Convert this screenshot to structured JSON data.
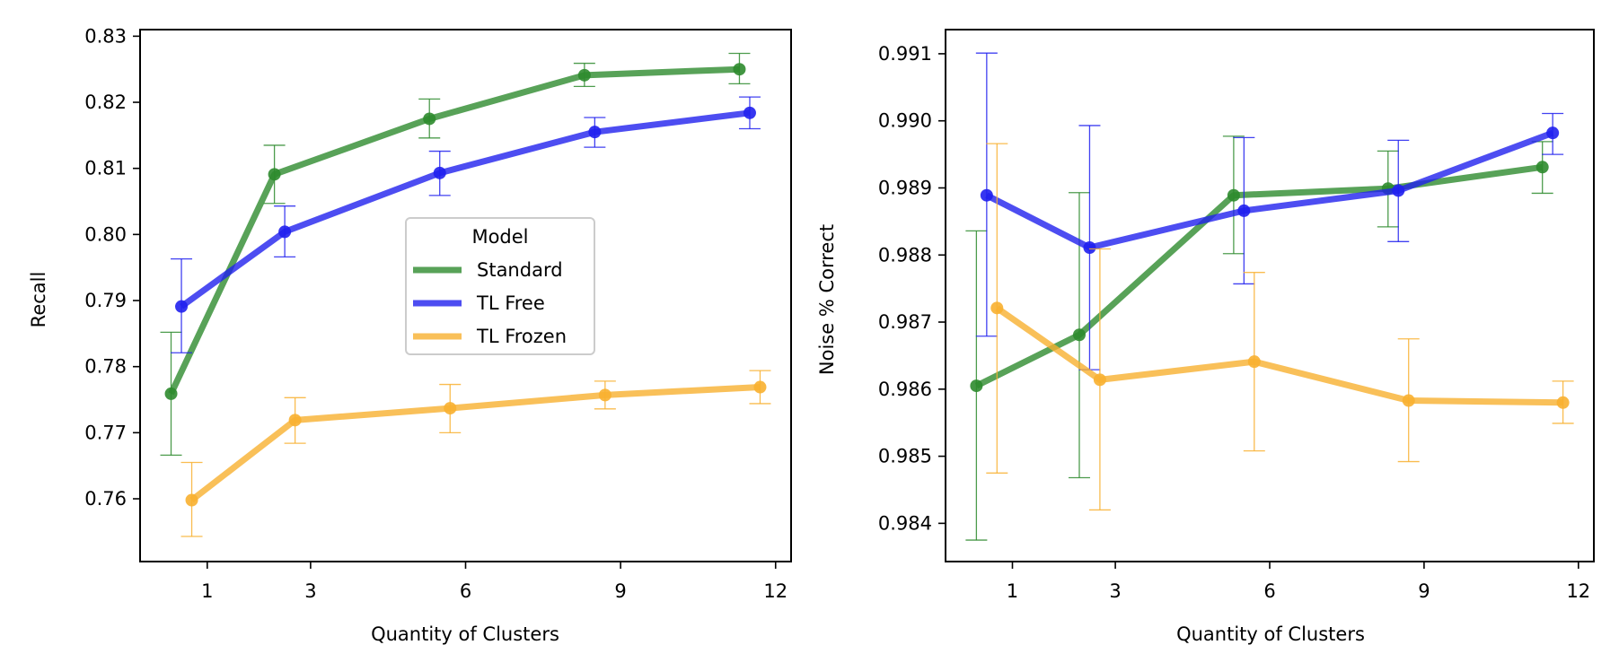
{
  "chart_data": [
    {
      "type": "line",
      "xlabel": "Quantity of Clusters",
      "ylabel": "Recall",
      "xlim": [
        -0.3,
        12.3
      ],
      "ylim": [
        0.7505,
        0.831
      ],
      "xticks": [
        1,
        3,
        6,
        9,
        12
      ],
      "xtick_labels": [
        "1",
        "3",
        "6",
        "9",
        "12"
      ],
      "yticks": [
        0.76,
        0.77,
        0.78,
        0.79,
        0.8,
        0.81,
        0.82,
        0.83
      ],
      "ytick_labels": [
        "0.76",
        "0.77",
        "0.78",
        "0.79",
        "0.80",
        "0.81",
        "0.82",
        "0.83"
      ],
      "legend": {
        "title": "Model",
        "position": "center"
      },
      "series": [
        {
          "name": "Standard",
          "color": "#2e8b2e",
          "x": [
            0.3,
            2.3,
            5.3,
            8.3,
            11.3
          ],
          "values": [
            0.7759,
            0.8091,
            0.8175,
            0.8241,
            0.825
          ],
          "err_low": [
            0.7666,
            0.8047,
            0.8146,
            0.8224,
            0.8228
          ],
          "err_high": [
            0.7852,
            0.8135,
            0.8205,
            0.8259,
            0.8274
          ]
        },
        {
          "name": "TL Free",
          "color": "#2020ee",
          "x": [
            0.5,
            2.5,
            5.5,
            8.5,
            11.5
          ],
          "values": [
            0.7891,
            0.8004,
            0.8093,
            0.8155,
            0.8184
          ],
          "err_low": [
            0.7821,
            0.7966,
            0.8059,
            0.8132,
            0.816
          ],
          "err_high": [
            0.7963,
            0.8043,
            0.8126,
            0.8177,
            0.8208
          ]
        },
        {
          "name": "TL Frozen",
          "color": "#f8b030",
          "x": [
            0.7,
            2.7,
            5.7,
            8.7,
            11.7
          ],
          "values": [
            0.7598,
            0.7719,
            0.7737,
            0.7757,
            0.7769
          ],
          "err_low": [
            0.7543,
            0.7684,
            0.77,
            0.7736,
            0.7744
          ],
          "err_high": [
            0.7655,
            0.7753,
            0.7773,
            0.7778,
            0.7794
          ]
        }
      ]
    },
    {
      "type": "line",
      "xlabel": "Quantity of Clusters",
      "ylabel": "Noise % Correct",
      "xlim": [
        -0.3,
        12.3
      ],
      "ylim": [
        0.98343,
        0.99136
      ],
      "xticks": [
        1,
        3,
        6,
        9,
        12
      ],
      "xtick_labels": [
        "1",
        "3",
        "6",
        "9",
        "12"
      ],
      "yticks": [
        0.984,
        0.985,
        0.986,
        0.987,
        0.988,
        0.989,
        0.99,
        0.991
      ],
      "ytick_labels": [
        "0.984",
        "0.985",
        "0.986",
        "0.987",
        "0.988",
        "0.989",
        "0.990",
        "0.991"
      ],
      "series": [
        {
          "name": "Standard",
          "color": "#2e8b2e",
          "x": [
            0.3,
            2.3,
            5.3,
            8.3,
            11.3
          ],
          "values": [
            0.98605,
            0.98681,
            0.98889,
            0.98899,
            0.98931
          ],
          "err_low": [
            0.98375,
            0.98468,
            0.98802,
            0.98842,
            0.98892
          ],
          "err_high": [
            0.98836,
            0.98893,
            0.98977,
            0.98955,
            0.98969
          ]
        },
        {
          "name": "TL Free",
          "color": "#2020ee",
          "x": [
            0.5,
            2.5,
            5.5,
            8.5,
            11.5
          ],
          "values": [
            0.98889,
            0.98811,
            0.98866,
            0.98896,
            0.98982
          ],
          "err_low": [
            0.98679,
            0.98629,
            0.98757,
            0.9882,
            0.9895
          ],
          "err_high": [
            0.99101,
            0.98993,
            0.98975,
            0.98971,
            0.99011
          ]
        },
        {
          "name": "TL Frozen",
          "color": "#f8b030",
          "x": [
            0.7,
            2.7,
            5.7,
            8.7,
            11.7
          ],
          "values": [
            0.98721,
            0.98614,
            0.98641,
            0.98583,
            0.9858
          ],
          "err_low": [
            0.98475,
            0.9842,
            0.98508,
            0.98492,
            0.98549
          ],
          "err_high": [
            0.98966,
            0.98809,
            0.98774,
            0.98675,
            0.98612
          ]
        }
      ]
    }
  ]
}
